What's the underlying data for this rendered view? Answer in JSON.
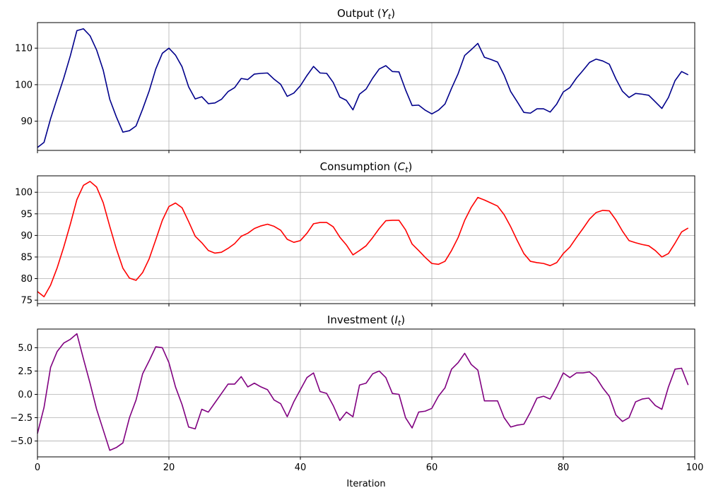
{
  "chart_data": [
    {
      "type": "line",
      "title": "Output (Y_t)",
      "title_text": "Output (",
      "title_symbol": "Y",
      "title_sub": "t",
      "title_close": ")",
      "color": "#00008b",
      "xlim": [
        0,
        100
      ],
      "ylim": [
        82,
        117
      ],
      "xticks": [
        0,
        20,
        40,
        60,
        80,
        100
      ],
      "yticks": [
        90,
        100,
        110
      ],
      "ytick_labels": [
        "90",
        "100",
        "110"
      ],
      "grid": true,
      "x": [
        0,
        1,
        2,
        3,
        4,
        5,
        6,
        7,
        8,
        9,
        10,
        11,
        12,
        13,
        14,
        15,
        16,
        17,
        18,
        19,
        20,
        21,
        22,
        23,
        24,
        25,
        26,
        27,
        28,
        29,
        30,
        31,
        32,
        33,
        34,
        35,
        36,
        37,
        38,
        39,
        40,
        41,
        42,
        43,
        44,
        45,
        46,
        47,
        48,
        49,
        50,
        51,
        52,
        53,
        54,
        55,
        56,
        57,
        58,
        59,
        60,
        61,
        62,
        63,
        64,
        65,
        66,
        67,
        68,
        69,
        70,
        71,
        72,
        73,
        74,
        75,
        76,
        77,
        78,
        79,
        80,
        81,
        82,
        83,
        84,
        85,
        86,
        87,
        88,
        89,
        90,
        91,
        92,
        93,
        94,
        95,
        96,
        97,
        98,
        99
      ],
      "y": [
        82.8,
        84.2,
        90.7,
        96.3,
        101.8,
        107.9,
        114.8,
        115.3,
        113.4,
        109.5,
        104.0,
        96.0,
        91.2,
        87.0,
        87.4,
        88.7,
        93.3,
        98.3,
        104.3,
        108.6,
        110.0,
        108.1,
        104.9,
        99.4,
        96.1,
        96.7,
        94.8,
        95.0,
        96.0,
        98.1,
        99.2,
        101.7,
        101.4,
        102.9,
        103.1,
        103.2,
        101.5,
        100.1,
        96.8,
        97.7,
        99.7,
        102.5,
        105.0,
        103.2,
        103.1,
        100.6,
        96.6,
        95.7,
        93.1,
        97.4,
        98.8,
        101.8,
        104.3,
        105.2,
        103.6,
        103.5,
        98.6,
        94.3,
        94.4,
        93.0,
        92.0,
        93.0,
        94.7,
        99.0,
        103.0,
        108.0,
        109.6,
        111.3,
        107.5,
        106.9,
        106.2,
        102.6,
        98.1,
        95.3,
        92.4,
        92.2,
        93.4,
        93.4,
        92.5,
        94.7,
        98.0,
        99.2,
        101.8,
        103.9,
        106.1,
        107.0,
        106.5,
        105.6,
        101.6,
        98.2,
        96.5,
        97.6,
        97.4,
        97.1,
        95.3,
        93.5,
        96.5,
        101.1,
        103.6,
        102.7
      ]
    },
    {
      "type": "line",
      "title": "Consumption (C_t)",
      "title_text": "Consumption (",
      "title_symbol": "C",
      "title_sub": "t",
      "title_close": ")",
      "color": "#ff0000",
      "xlim": [
        0,
        100
      ],
      "ylim": [
        74.2,
        103.8
      ],
      "xticks": [
        0,
        20,
        40,
        60,
        80,
        100
      ],
      "yticks": [
        75,
        80,
        85,
        90,
        95,
        100
      ],
      "ytick_labels": [
        "75",
        "80",
        "85",
        "90",
        "95",
        "100"
      ],
      "grid": true,
      "x": [
        0,
        1,
        2,
        3,
        4,
        5,
        6,
        7,
        8,
        9,
        10,
        11,
        12,
        13,
        14,
        15,
        16,
        17,
        18,
        19,
        20,
        21,
        22,
        23,
        24,
        25,
        26,
        27,
        28,
        29,
        30,
        31,
        32,
        33,
        34,
        35,
        36,
        37,
        38,
        39,
        40,
        41,
        42,
        43,
        44,
        45,
        46,
        47,
        48,
        49,
        50,
        51,
        52,
        53,
        54,
        55,
        56,
        57,
        58,
        59,
        60,
        61,
        62,
        63,
        64,
        65,
        66,
        67,
        68,
        69,
        70,
        71,
        72,
        73,
        74,
        75,
        76,
        77,
        78,
        79,
        80,
        81,
        82,
        83,
        84,
        85,
        86,
        87,
        88,
        89,
        90,
        91,
        92,
        93,
        94,
        95,
        96,
        97,
        98,
        99
      ],
      "y": [
        77.0,
        75.8,
        78.5,
        82.5,
        87.3,
        92.6,
        98.3,
        101.6,
        102.5,
        101.2,
        97.6,
        92.1,
        86.9,
        82.4,
        80.1,
        79.6,
        81.4,
        84.6,
        89.0,
        93.5,
        96.7,
        97.5,
        96.4,
        93.2,
        89.8,
        88.3,
        86.5,
        85.9,
        86.1,
        87.0,
        88.1,
        89.8,
        90.5,
        91.6,
        92.2,
        92.6,
        92.1,
        91.2,
        89.1,
        88.4,
        88.8,
        90.5,
        92.7,
        93.0,
        93.0,
        92.0,
        89.6,
        87.8,
        85.5,
        86.5,
        87.6,
        89.5,
        91.6,
        93.4,
        93.5,
        93.5,
        91.3,
        88.0,
        86.5,
        84.9,
        83.5,
        83.3,
        84.0,
        86.5,
        89.5,
        93.5,
        96.5,
        98.8,
        98.2,
        97.5,
        96.8,
        94.8,
        92.0,
        88.8,
        85.8,
        84.0,
        83.7,
        83.5,
        83.0,
        83.7,
        85.8,
        87.3,
        89.5,
        91.6,
        93.8,
        95.3,
        95.8,
        95.7,
        93.6,
        91.0,
        88.8,
        88.3,
        87.9,
        87.6,
        86.5,
        85.0,
        85.8,
        88.2,
        90.8,
        91.7
      ]
    },
    {
      "type": "line",
      "title": "Investment (I_t)",
      "title_text": "Investment (",
      "title_symbol": "I",
      "title_sub": "t",
      "title_close": ")",
      "color": "#800080",
      "xlabel": "Iteration",
      "xlim": [
        0,
        100
      ],
      "ylim": [
        -6.7,
        7.0
      ],
      "xticks": [
        0,
        20,
        40,
        60,
        80,
        100
      ],
      "xtick_labels": [
        "0",
        "20",
        "40",
        "60",
        "80",
        "100"
      ],
      "yticks": [
        -5.0,
        -2.5,
        0.0,
        2.5,
        5.0
      ],
      "ytick_labels": [
        "−5.0",
        "−2.5",
        "0.0",
        "2.5",
        "5.0"
      ],
      "grid": true,
      "x": [
        0,
        1,
        2,
        3,
        4,
        5,
        6,
        7,
        8,
        9,
        10,
        11,
        12,
        13,
        14,
        15,
        16,
        17,
        18,
        19,
        20,
        21,
        22,
        23,
        24,
        25,
        26,
        27,
        28,
        29,
        30,
        31,
        32,
        33,
        34,
        35,
        36,
        37,
        38,
        39,
        40,
        41,
        42,
        43,
        44,
        45,
        46,
        47,
        48,
        49,
        50,
        51,
        52,
        53,
        54,
        55,
        56,
        57,
        58,
        59,
        60,
        61,
        62,
        63,
        64,
        65,
        66,
        67,
        68,
        69,
        70,
        71,
        72,
        73,
        74,
        75,
        76,
        77,
        78,
        79,
        80,
        81,
        82,
        83,
        84,
        85,
        86,
        87,
        88,
        89,
        90,
        91,
        92,
        93,
        94,
        95,
        96,
        97,
        98,
        99
      ],
      "y": [
        -4.2,
        -1.4,
        2.9,
        4.6,
        5.5,
        5.9,
        6.5,
        3.8,
        1.2,
        -1.6,
        -3.8,
        -6.0,
        -5.7,
        -5.2,
        -2.5,
        -0.6,
        2.2,
        3.6,
        5.1,
        5.0,
        3.4,
        0.8,
        -1.1,
        -3.5,
        -3.7,
        -1.6,
        -1.9,
        -0.9,
        0.1,
        1.1,
        1.1,
        1.9,
        0.8,
        1.2,
        0.8,
        0.5,
        -0.6,
        -1.0,
        -2.4,
        -0.8,
        0.5,
        1.8,
        2.3,
        0.3,
        0.1,
        -1.2,
        -2.8,
        -1.9,
        -2.4,
        1.0,
        1.2,
        2.2,
        2.5,
        1.8,
        0.1,
        0.0,
        -2.5,
        -3.6,
        -1.9,
        -1.8,
        -1.5,
        -0.2,
        0.7,
        2.7,
        3.4,
        4.4,
        3.2,
        2.6,
        -0.7,
        -0.7,
        -0.7,
        -2.5,
        -3.5,
        -3.3,
        -3.2,
        -1.9,
        -0.4,
        -0.2,
        -0.5,
        0.8,
        2.3,
        1.8,
        2.3,
        2.3,
        2.4,
        1.8,
        0.7,
        -0.2,
        -2.2,
        -2.9,
        -2.5,
        -0.8,
        -0.5,
        -0.4,
        -1.2,
        -1.6,
        0.8,
        2.7,
        2.8,
        1.0
      ]
    }
  ]
}
